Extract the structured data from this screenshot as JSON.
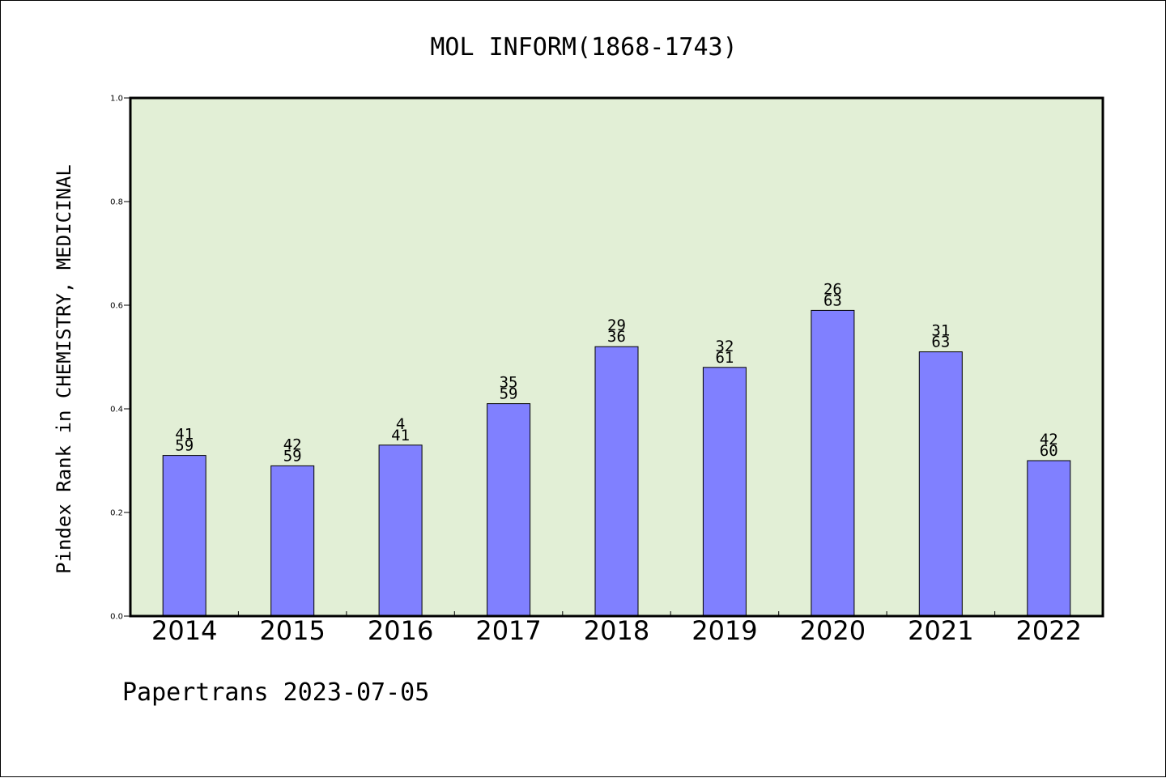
{
  "chart_data": {
    "type": "bar",
    "title": "MOL INFORM(1868-1743)",
    "xlabel": "",
    "ylabel": "Pindex Rank in CHEMISTRY, MEDICINAL",
    "ylim": [
      0.0,
      1.0
    ],
    "yticks": [
      "0.0",
      "0.2",
      "0.4",
      "0.6",
      "0.8",
      "1.0"
    ],
    "categories": [
      "2014",
      "2015",
      "2016",
      "2017",
      "2018",
      "2019",
      "2020",
      "2021",
      "2022"
    ],
    "values": [
      0.31,
      0.29,
      0.33,
      0.41,
      0.52,
      0.48,
      0.59,
      0.51,
      0.3
    ],
    "labels_top": [
      "41",
      "42",
      "4",
      "35",
      "29",
      "32",
      "26",
      "31",
      "42"
    ],
    "labels_bottom": [
      "59",
      "59",
      "41",
      "59",
      "36",
      "61",
      "63",
      "63",
      "60"
    ],
    "grid": false,
    "colors": {
      "plot_background": "#e2efd6",
      "bar_fill": "#8080ff",
      "bar_stroke": "#000000",
      "axis": "#000000"
    }
  },
  "footer": {
    "text": "Papertrans 2023-07-05"
  }
}
